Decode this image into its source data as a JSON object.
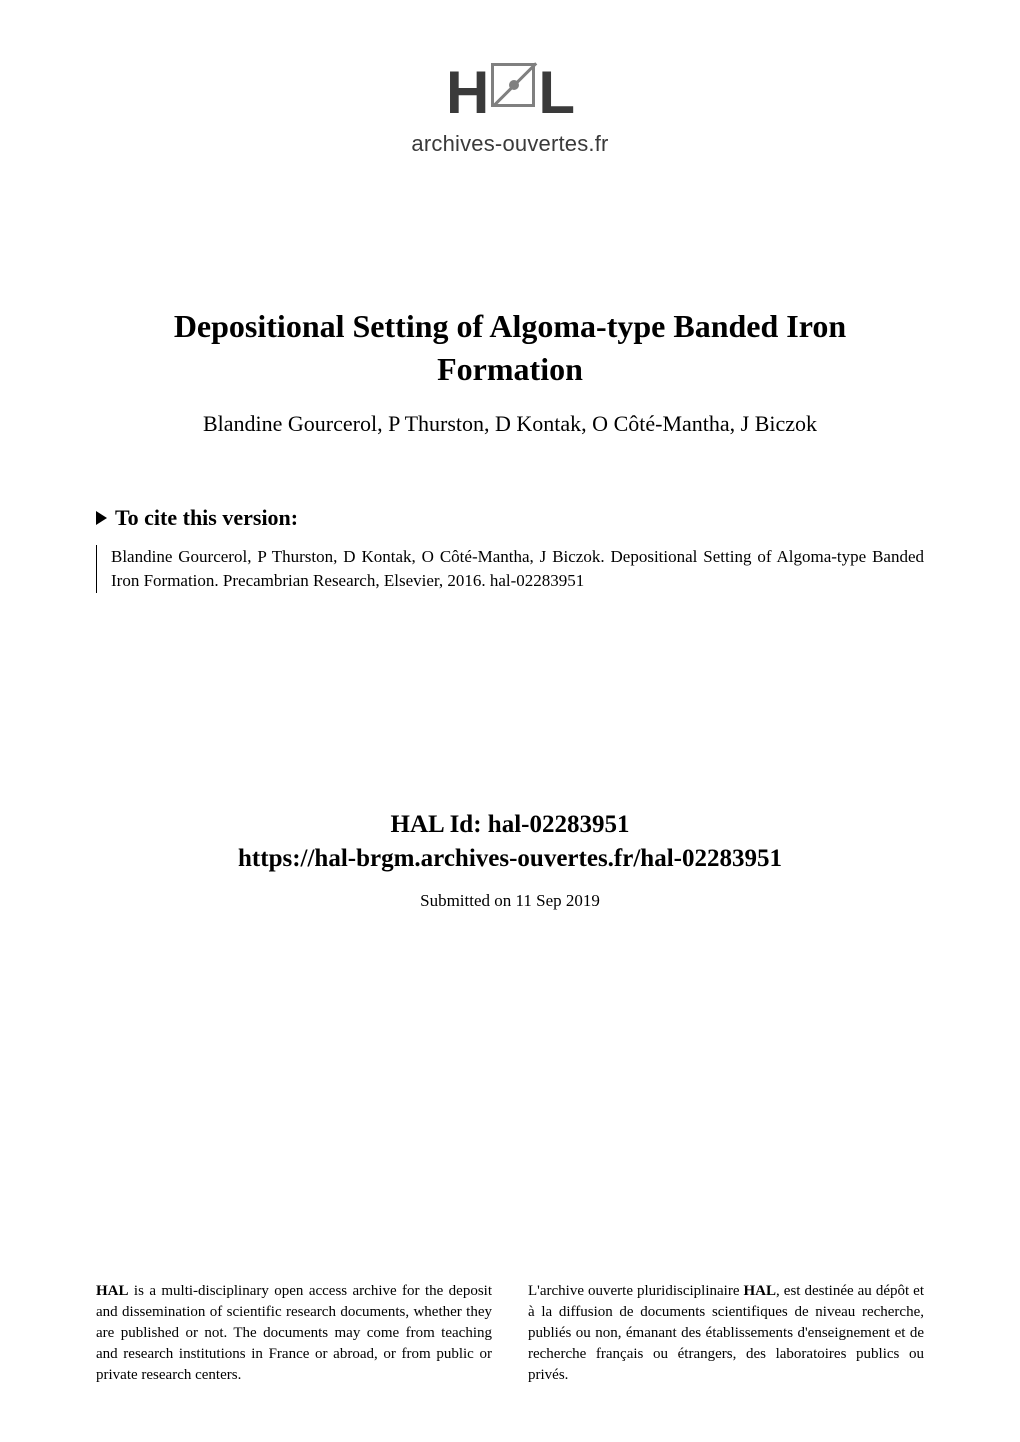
{
  "logo": {
    "letter_h": "H",
    "letter_l": "L",
    "subtitle": "archives-ouvertes.fr",
    "icon_name": "hal-logo"
  },
  "paper": {
    "title_line1": "Depositional Setting of Algoma-type Banded Iron",
    "title_line2": "Formation",
    "authors": "Blandine Gourcerol, P Thurston, D Kontak, O Côté-Mantha, J Biczok"
  },
  "cite": {
    "header": "To cite this version:",
    "body": "Blandine Gourcerol, P Thurston, D Kontak, O Côté-Mantha, J Biczok. Depositional Setting of Algoma-type Banded Iron Formation. Precambrian Research, Elsevier, 2016. hal-02283951"
  },
  "hal_id": {
    "label": "HAL Id: hal-02283951",
    "url": "https://hal-brgm.archives-ouvertes.fr/hal-02283951",
    "submitted": "Submitted on 11 Sep 2019"
  },
  "footer": {
    "left": {
      "l1": "HAL",
      "l2": " is a multi-disciplinary open access archive for the deposit and dissemination of scientific research documents, whether they are published or not. The documents may come from teaching and research institutions in France or abroad, or from public or private research centers."
    },
    "right": {
      "l1": "L'archive ouverte pluridisciplinaire ",
      "l2": "HAL",
      "l3": ", est destinée au dépôt et à la diffusion de documents scientifiques de niveau recherche, publiés ou non, émanant des établissements d'enseignement et de recherche français ou étrangers, des laboratoires publics ou privés."
    }
  },
  "colors": {
    "background": "#ffffff",
    "text": "#000000",
    "logo_gray": "#3a3a3a",
    "icon_gray": "#808080"
  },
  "fonts": {
    "body_family": "Computer Modern, Georgia, Times New Roman, serif",
    "logo_family": "Arial, Helvetica, sans-serif",
    "title_size_pt": 24,
    "authors_size_pt": 16,
    "cite_header_size_pt": 16,
    "cite_body_size_pt": 13,
    "hal_id_size_pt": 18,
    "submitted_size_pt": 13,
    "footer_size_pt": 11
  }
}
